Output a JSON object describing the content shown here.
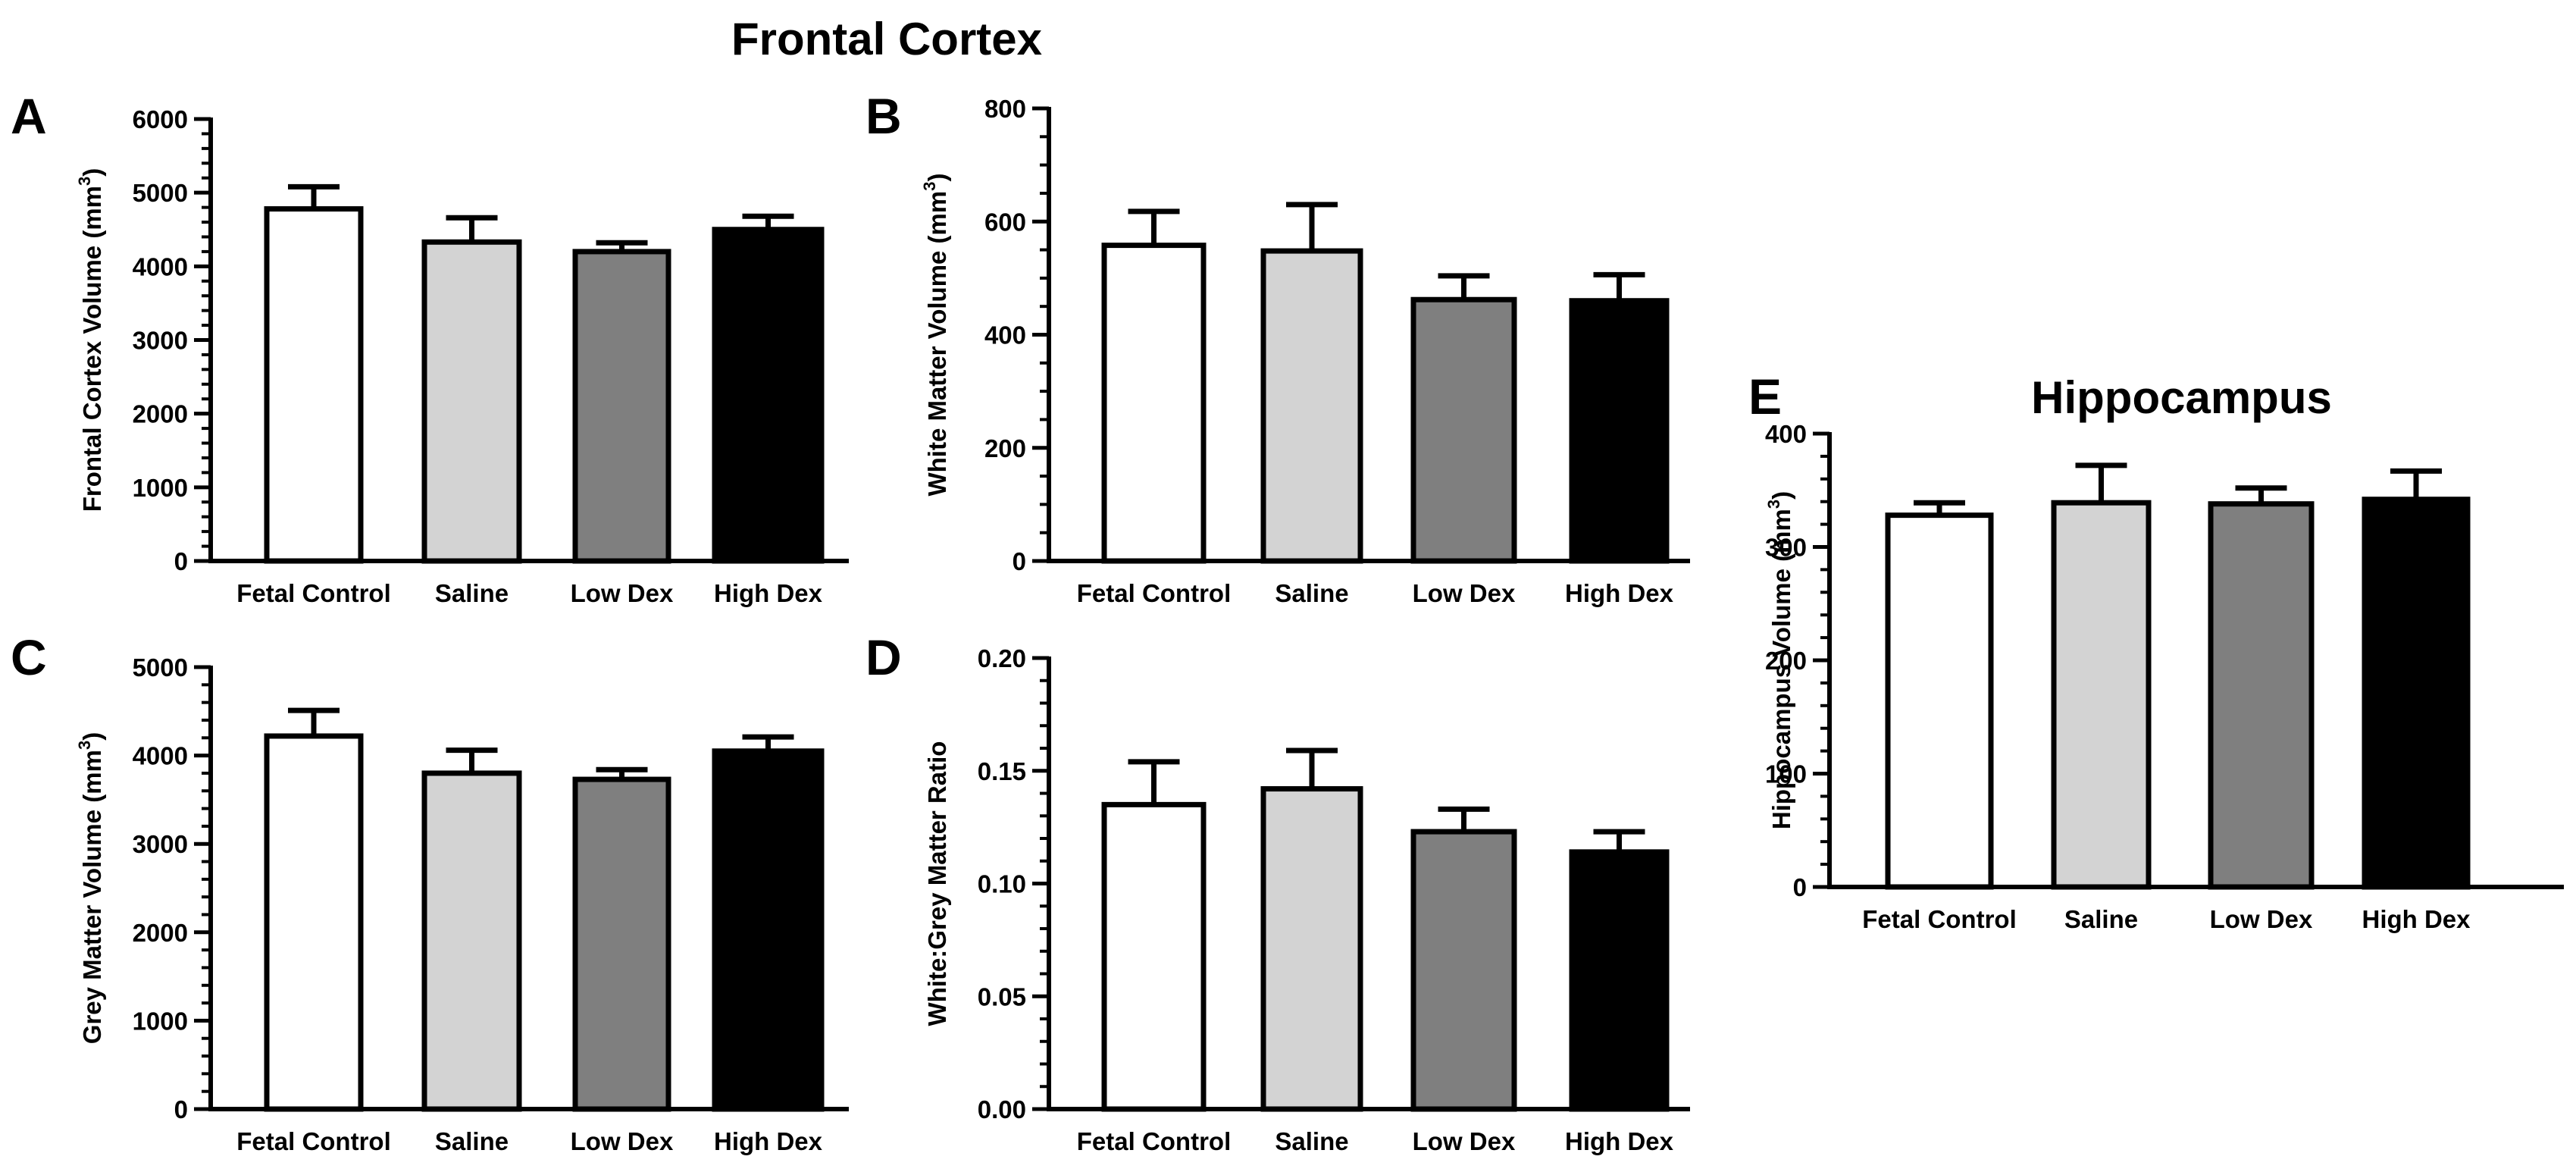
{
  "figure": {
    "title": "Frontal Cortex",
    "colors": {
      "fetal_control": "#ffffff",
      "saline": "#d3d3d3",
      "low_dex": "#7f7f7f",
      "high_dex": "#000000"
    }
  },
  "chart_data": [
    {
      "panel": "A",
      "type": "bar",
      "categories": [
        "Fetal Control",
        "Saline",
        "Low Dex",
        "High Dex"
      ],
      "values": [
        4780,
        4330,
        4200,
        4500
      ],
      "errors": [
        300,
        330,
        120,
        180
      ],
      "ylabel": {
        "main": "Frontal Cortex Volume (mm",
        "sup": "3",
        "end": ")"
      },
      "ylim": [
        0,
        6000
      ],
      "yticks": [
        0,
        1000,
        2000,
        3000,
        4000,
        5000,
        6000
      ],
      "tick_labels": [
        "0",
        "1000",
        "2000",
        "3000",
        "4000",
        "5000",
        "6000"
      ],
      "minor_per_major": 5
    },
    {
      "panel": "B",
      "type": "bar",
      "categories": [
        "Fetal Control",
        "Saline",
        "Low Dex",
        "High Dex"
      ],
      "values": [
        558,
        548,
        462,
        460
      ],
      "errors": [
        60,
        82,
        42,
        46
      ],
      "ylabel": {
        "main": "White Matter Volume (mm",
        "sup": "3",
        "end": ")"
      },
      "ylim": [
        0,
        800
      ],
      "yticks": [
        0,
        200,
        400,
        600,
        800
      ],
      "tick_labels": [
        "0",
        "200",
        "400",
        "600",
        "800"
      ],
      "minor_per_major": 4
    },
    {
      "panel": "C",
      "type": "bar",
      "categories": [
        "Fetal Control",
        "Saline",
        "Low Dex",
        "High Dex"
      ],
      "values": [
        4220,
        3800,
        3730,
        4050
      ],
      "errors": [
        290,
        260,
        110,
        160
      ],
      "ylabel": {
        "main": "Grey Matter Volume (mm",
        "sup": "3",
        "end": ")"
      },
      "ylim": [
        0,
        5000
      ],
      "yticks": [
        0,
        1000,
        2000,
        3000,
        4000,
        5000
      ],
      "tick_labels": [
        "0",
        "1000",
        "2000",
        "3000",
        "4000",
        "5000"
      ],
      "minor_per_major": 5
    },
    {
      "panel": "D",
      "type": "bar",
      "categories": [
        "Fetal Control",
        "Saline",
        "Low Dex",
        "High Dex"
      ],
      "values": [
        0.135,
        0.142,
        0.123,
        0.114
      ],
      "errors": [
        0.019,
        0.017,
        0.01,
        0.009
      ],
      "ylabel": {
        "main": "White:Grey Matter Ratio",
        "sup": "",
        "end": ""
      },
      "ylim": [
        0,
        0.2
      ],
      "yticks": [
        0,
        0.05,
        0.1,
        0.15,
        0.2
      ],
      "tick_labels": [
        "0.00",
        "0.05",
        "0.10",
        "0.15",
        "0.20"
      ],
      "minor_per_major": 5
    },
    {
      "panel": "E",
      "type": "bar",
      "title": "Hippocampus",
      "categories": [
        "Fetal Control",
        "Saline",
        "Low Dex",
        "High Dex"
      ],
      "values": [
        328,
        339,
        338,
        342
      ],
      "errors": [
        11,
        33,
        14,
        25
      ],
      "ylabel": {
        "main": "Hippocampus Volume (mm",
        "sup": "3",
        "end": ")"
      },
      "ylim": [
        0,
        400
      ],
      "yticks": [
        0,
        100,
        200,
        300,
        400
      ],
      "tick_labels": [
        "0",
        "100",
        "200",
        "300",
        "400"
      ],
      "minor_per_major": 5
    }
  ]
}
